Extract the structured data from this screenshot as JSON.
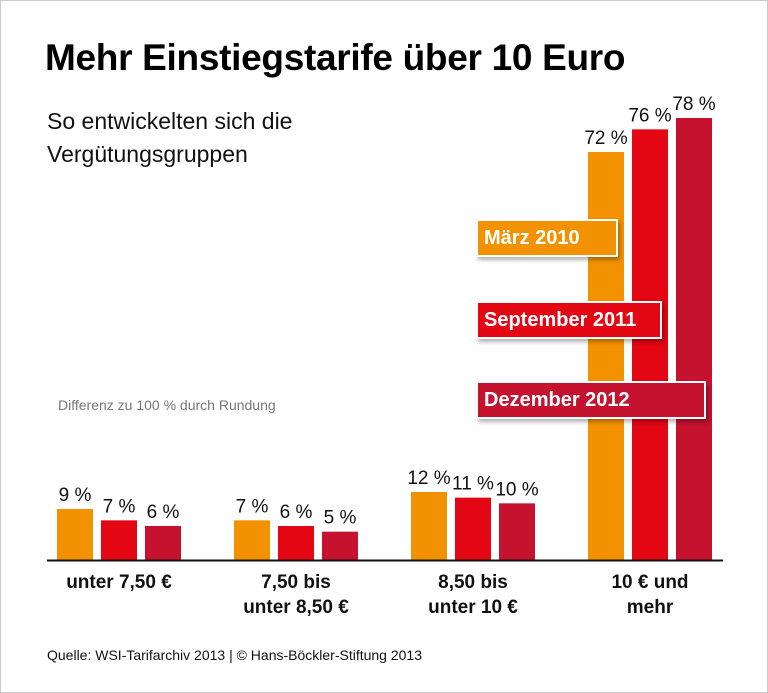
{
  "chart_data": {
    "type": "bar",
    "title": "Mehr Einstiegstarife über 10 Euro",
    "subtitle": "So entwickelten sich die Vergütungsgruppen",
    "note": "Differenz zu 100 % durch Rundung",
    "source": "Quelle: WSI-Tarifarchiv 2013 | © Hans-Böckler-Stiftung 2013",
    "categories": [
      [
        "unter 7,50 €"
      ],
      [
        "7,50 bis",
        "unter 8,50 €"
      ],
      [
        "8,50 bis",
        "unter 10 €"
      ],
      [
        "10 € und",
        "mehr"
      ]
    ],
    "series": [
      {
        "name": "März 2010",
        "color": "#F39200",
        "values": [
          9,
          7,
          12,
          72
        ]
      },
      {
        "name": "September 2011",
        "color": "#E30613",
        "values": [
          7,
          6,
          11,
          76
        ]
      },
      {
        "name": "Dezember 2012",
        "color": "#C4122F",
        "values": [
          6,
          5,
          10,
          78
        ]
      }
    ],
    "unit": "%",
    "ylim": [
      0,
      78
    ],
    "grid": false,
    "legend_placement": "inside-right"
  }
}
